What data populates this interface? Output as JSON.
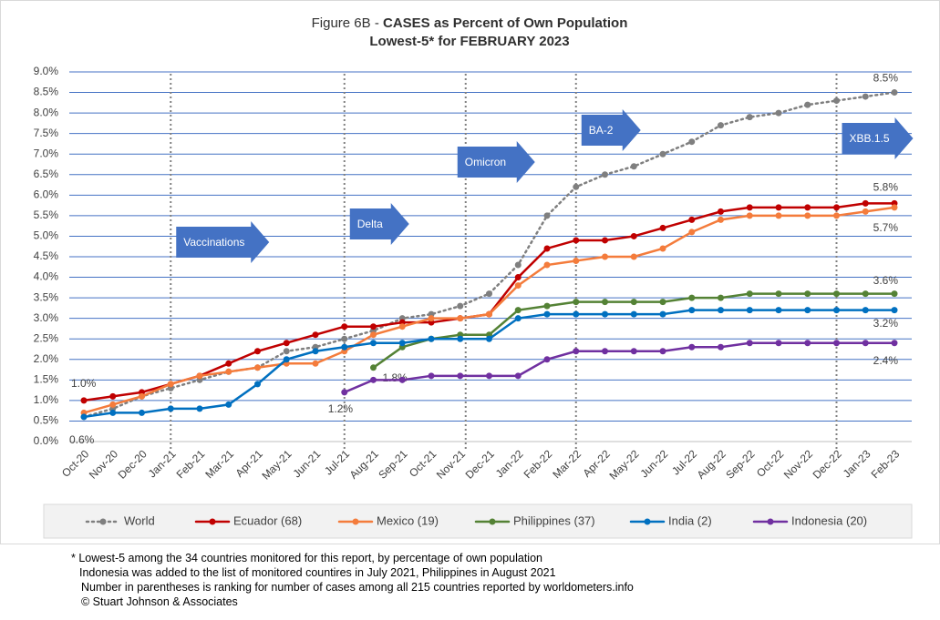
{
  "chart_data": {
    "type": "line",
    "title_prefix": "Figure 6B - ",
    "title": "CASES as Percent of Own Population",
    "subtitle": "Lowest-5* for FEBRUARY 2023",
    "categories": [
      "Oct-20",
      "Nov-20",
      "Dec-20",
      "Jan-21",
      "Feb-21",
      "Mar-21",
      "Apr-21",
      "May-21",
      "Jun-21",
      "Jul-21",
      "Aug-21",
      "Sep-21",
      "Oct-21",
      "Nov-21",
      "Dec-21",
      "Jan-22",
      "Feb-22",
      "Mar-22",
      "Apr-22",
      "May-22",
      "Jun-22",
      "Jul-22",
      "Aug-22",
      "Sep-22",
      "Oct-22",
      "Nov-22",
      "Dec-22",
      "Jan-23",
      "Feb-23"
    ],
    "series": [
      {
        "name": "World",
        "color": "#7f7f7f",
        "dashed": true,
        "values": [
          0.6,
          0.8,
          1.1,
          1.3,
          1.5,
          1.7,
          1.8,
          2.2,
          2.3,
          2.5,
          2.7,
          3.0,
          3.1,
          3.3,
          3.6,
          4.3,
          5.5,
          6.2,
          6.5,
          6.7,
          7.0,
          7.3,
          7.7,
          7.9,
          8.0,
          8.2,
          8.3,
          8.4,
          8.5
        ],
        "value_labels": [
          null,
          null,
          null,
          null,
          null,
          null,
          null,
          null,
          null,
          null,
          null,
          null,
          null,
          null,
          null,
          null,
          null,
          null,
          null,
          null,
          null,
          null,
          null,
          null,
          null,
          null,
          null,
          null,
          "8.5%"
        ]
      },
      {
        "name": "Ecuador (68)",
        "color": "#c00000",
        "values": [
          1.0,
          1.1,
          1.2,
          1.4,
          1.6,
          1.9,
          2.2,
          2.4,
          2.6,
          2.8,
          2.8,
          2.9,
          2.9,
          3.0,
          3.1,
          4.0,
          4.7,
          4.9,
          4.9,
          5.0,
          5.2,
          5.4,
          5.6,
          5.7,
          5.7,
          5.7,
          5.7,
          5.8,
          5.8
        ],
        "value_labels": [
          "1.0%",
          null,
          null,
          null,
          null,
          null,
          null,
          null,
          null,
          null,
          null,
          null,
          null,
          null,
          null,
          null,
          null,
          null,
          null,
          null,
          null,
          null,
          null,
          null,
          null,
          null,
          null,
          null,
          "5.8%"
        ]
      },
      {
        "name": "Mexico (19)",
        "color": "#f47c3c",
        "values": [
          0.7,
          0.9,
          1.1,
          1.4,
          1.6,
          1.7,
          1.8,
          1.9,
          1.9,
          2.2,
          2.6,
          2.8,
          3.0,
          3.0,
          3.1,
          3.8,
          4.3,
          4.4,
          4.5,
          4.5,
          4.7,
          5.1,
          5.4,
          5.5,
          5.5,
          5.5,
          5.5,
          5.6,
          5.7
        ],
        "value_labels": [
          null,
          null,
          null,
          null,
          null,
          null,
          null,
          null,
          null,
          null,
          null,
          null,
          null,
          null,
          null,
          null,
          null,
          null,
          null,
          null,
          null,
          null,
          null,
          null,
          null,
          null,
          null,
          null,
          "5.7%"
        ]
      },
      {
        "name": "Philippines (37)",
        "color": "#548235",
        "values": [
          null,
          null,
          null,
          null,
          null,
          null,
          null,
          null,
          null,
          null,
          1.8,
          2.3,
          2.5,
          2.6,
          2.6,
          3.2,
          3.3,
          3.4,
          3.4,
          3.4,
          3.4,
          3.5,
          3.5,
          3.6,
          3.6,
          3.6,
          3.6,
          3.6,
          3.6
        ],
        "value_labels": [
          null,
          null,
          null,
          null,
          null,
          null,
          null,
          null,
          null,
          null,
          "1.8%",
          null,
          null,
          null,
          null,
          null,
          null,
          null,
          null,
          null,
          null,
          null,
          null,
          null,
          null,
          null,
          null,
          null,
          "3.6%"
        ]
      },
      {
        "name": "India (2)",
        "color": "#0070c0",
        "values": [
          0.6,
          0.7,
          0.7,
          0.8,
          0.8,
          0.9,
          1.4,
          2.0,
          2.2,
          2.3,
          2.4,
          2.4,
          2.5,
          2.5,
          2.5,
          3.0,
          3.1,
          3.1,
          3.1,
          3.1,
          3.1,
          3.2,
          3.2,
          3.2,
          3.2,
          3.2,
          3.2,
          3.2,
          3.2
        ],
        "value_labels": [
          "0.6%",
          null,
          null,
          null,
          null,
          null,
          null,
          null,
          null,
          null,
          null,
          null,
          null,
          null,
          null,
          null,
          null,
          null,
          null,
          null,
          null,
          null,
          null,
          null,
          null,
          null,
          null,
          null,
          "3.2%"
        ]
      },
      {
        "name": "Indonesia (20)",
        "color": "#7030a0",
        "values": [
          null,
          null,
          null,
          null,
          null,
          null,
          null,
          null,
          null,
          1.2,
          1.5,
          1.5,
          1.6,
          1.6,
          1.6,
          1.6,
          2.0,
          2.2,
          2.2,
          2.2,
          2.2,
          2.3,
          2.3,
          2.4,
          2.4,
          2.4,
          2.4,
          2.4,
          2.4
        ],
        "value_labels": [
          null,
          null,
          null,
          null,
          null,
          null,
          null,
          null,
          null,
          "1.2%",
          null,
          null,
          null,
          null,
          null,
          null,
          null,
          null,
          null,
          null,
          null,
          null,
          null,
          null,
          null,
          null,
          null,
          null,
          "2.4%"
        ]
      }
    ],
    "ylim": [
      0,
      9
    ],
    "yticks": [
      {
        "value": 0,
        "label": "0.0%"
      },
      {
        "value": 0.5,
        "label": "0.5%"
      },
      {
        "value": 1,
        "label": "1.0%"
      },
      {
        "value": 1.5,
        "label": "1.5%"
      },
      {
        "value": 2,
        "label": "2.0%"
      },
      {
        "value": 2.5,
        "label": "2.5%"
      },
      {
        "value": 3,
        "label": "3.0%"
      },
      {
        "value": 3.5,
        "label": "3.5%"
      },
      {
        "value": 4,
        "label": "4.0%"
      },
      {
        "value": 4.5,
        "label": "4.5%"
      },
      {
        "value": 5,
        "label": "5.0%"
      },
      {
        "value": 5.5,
        "label": "5.5%"
      },
      {
        "value": 6,
        "label": "6.0%"
      },
      {
        "value": 6.5,
        "label": "6.5%"
      },
      {
        "value": 7,
        "label": "7.0%"
      },
      {
        "value": 7.5,
        "label": "7.5%"
      },
      {
        "value": 8,
        "label": "8.0%"
      },
      {
        "value": 8.5,
        "label": "8.5%"
      },
      {
        "value": 9,
        "label": "9.0%"
      }
    ],
    "grid": true,
    "grid_color": "#4472c4",
    "events": [
      {
        "label": "Vaccinations",
        "category": "Jan-21"
      },
      {
        "label": "Delta",
        "category": "Jul-21"
      },
      {
        "label": "Omicron",
        "category": "Nov-21"
      },
      {
        "label": "BA-2",
        "category": "Mar-22"
      },
      {
        "label": "XBB.1.5",
        "category": "Dec-22"
      }
    ],
    "event_color": "#4472c4",
    "notes": [
      "* Lowest-5 among the 34 countries monitored for this report, by percentage of own population",
      "Indonesia was added to the list of monitored countires in July 2021, Philippines in August 2021",
      "Number in parentheses is ranking for number of cases among all 215 countries reported by worldometers.info",
      "© Stuart Johnson & Associates"
    ]
  }
}
